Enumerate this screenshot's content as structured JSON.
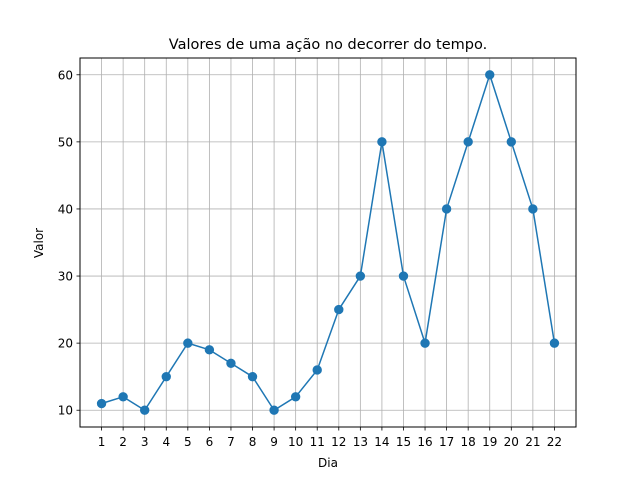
{
  "chart_data": {
    "type": "line",
    "title": "Valores de uma ação no decorrer do tempo.",
    "xlabel": "Dia",
    "ylabel": "Valor",
    "x": [
      1,
      2,
      3,
      4,
      5,
      6,
      7,
      8,
      9,
      10,
      11,
      12,
      13,
      14,
      15,
      16,
      17,
      18,
      19,
      20,
      21,
      22
    ],
    "y": [
      11,
      12,
      10,
      15,
      20,
      19,
      17,
      15,
      10,
      12,
      16,
      25,
      30,
      50,
      30,
      20,
      40,
      50,
      60,
      50,
      40,
      20
    ],
    "xticks": [
      "1",
      "2",
      "3",
      "4",
      "5",
      "6",
      "7",
      "8",
      "9",
      "10",
      "11",
      "12",
      "13",
      "14",
      "15",
      "16",
      "17",
      "18",
      "19",
      "20",
      "21",
      "22"
    ],
    "yticks": [
      "10",
      "20",
      "30",
      "40",
      "50",
      "60"
    ],
    "xlim": [
      0,
      23
    ],
    "ylim": [
      7.5,
      62.5
    ],
    "grid": true,
    "marker": "circle",
    "line_color": "#1f77b4",
    "grid_color": "#b0b0b0"
  }
}
